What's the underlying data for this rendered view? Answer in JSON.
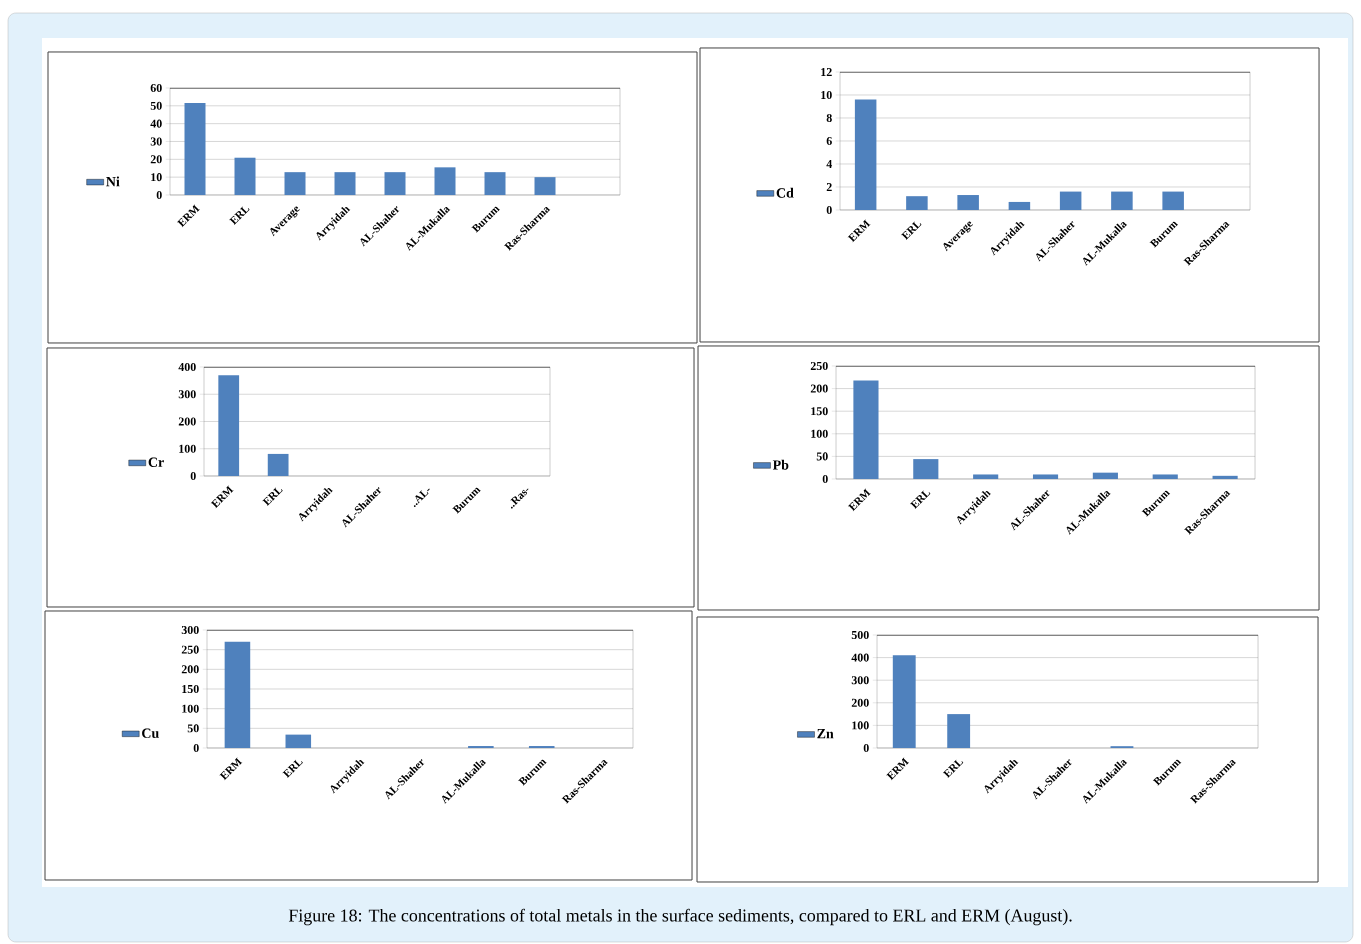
{
  "chart_data": [
    {
      "type": "bar",
      "categories": [
        "ERM",
        "ERL",
        "Average",
        "Arryidah",
        "AL-Shaher",
        "AL-Mukalla",
        "Burum",
        "Ras-Sharma",
        null
      ],
      "series": [
        {
          "name": "Ni",
          "color": "#4f81bd",
          "values": [
            51.6,
            20.9,
            12.8,
            12.8,
            12.8,
            15.5,
            12.8,
            10,
            null
          ]
        }
      ],
      "ylim": [
        0,
        60
      ],
      "yticks": [
        0,
        10,
        20,
        30,
        40,
        50,
        60
      ],
      "grid": "y",
      "legend": "left",
      "annotations": [
        "Figure 18: The concentrations of total metals in the surface sediments, compared to ERL and ERM (August)."
      ]
    },
    {
      "type": "bar",
      "categories": [
        "ERM",
        "ERL",
        "Average",
        "Arryidah",
        "AL-Shaher",
        "AL-Mukalla",
        "Burum",
        "Ras-Sharma"
      ],
      "series": [
        {
          "name": "Cd",
          "color": "#4f81bd",
          "values": [
            9.6,
            1.2,
            1.3,
            0.7,
            1.6,
            1.6,
            1.6,
            null
          ]
        }
      ],
      "ylim": [
        0,
        12
      ],
      "yticks": [
        0,
        2,
        4,
        6,
        8,
        10,
        12
      ],
      "grid": "y",
      "legend": "left"
    },
    {
      "type": "bar",
      "categories": [
        "ERM",
        "ERL",
        "Arryidah",
        "AL-Shaher",
        "..AL-",
        "Burum",
        "..Ras-"
      ],
      "series": [
        {
          "name": "Cr",
          "color": "#4f81bd",
          "values": [
            370,
            81,
            null,
            null,
            null,
            null,
            null
          ]
        }
      ],
      "ylim": [
        0,
        400
      ],
      "yticks": [
        0,
        100,
        200,
        300,
        400
      ],
      "grid": "y",
      "legend": "left"
    },
    {
      "type": "bar",
      "categories": [
        "ERM",
        "ERL",
        "Arryidah",
        "AL-Shaher",
        "AL-Mukalla",
        "Burum",
        "Ras-Sharma"
      ],
      "series": [
        {
          "name": "Pb",
          "color": "#4f81bd",
          "values": [
            218,
            44,
            10,
            10,
            14,
            10,
            7
          ]
        }
      ],
      "ylim": [
        0,
        250
      ],
      "yticks": [
        0,
        50,
        100,
        150,
        200,
        250
      ],
      "grid": "y",
      "legend": "left"
    },
    {
      "type": "bar",
      "categories": [
        "ERM",
        "ERL",
        "Arryidah",
        "AL-Shaher",
        "AL-Mukalla",
        "Burum",
        "Ras-Sharma"
      ],
      "series": [
        {
          "name": "Cu",
          "color": "#4f81bd",
          "values": [
            270,
            34,
            null,
            null,
            5,
            5,
            null
          ]
        }
      ],
      "ylim": [
        0,
        300
      ],
      "yticks": [
        0,
        50,
        100,
        150,
        200,
        250,
        300
      ],
      "grid": "y",
      "legend": "left"
    },
    {
      "type": "bar",
      "categories": [
        "ERM",
        "ERL",
        "Arryidah",
        "AL-Shaher",
        "AL-Mukalla",
        "Burum",
        "Ras-Sharma"
      ],
      "series": [
        {
          "name": "Zn",
          "color": "#4f81bd",
          "values": [
            410,
            150,
            null,
            null,
            8,
            null,
            null
          ]
        }
      ],
      "ylim": [
        0,
        500
      ],
      "yticks": [
        0,
        100,
        200,
        300,
        400,
        500
      ],
      "grid": "y",
      "legend": "left"
    }
  ]
}
